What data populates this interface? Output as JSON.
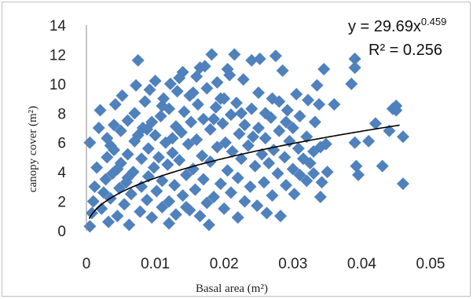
{
  "chart_data": {
    "type": "scatter",
    "title": "",
    "xlabel": "Basal area (m²)",
    "ylabel": "canopy cover (m²)",
    "xlim": [
      0,
      0.05
    ],
    "ylim": [
      0,
      14
    ],
    "x_ticks": [
      "0",
      "0.01",
      "0.02",
      "0.03",
      "0.04",
      "0.05"
    ],
    "y_ticks": [
      "0",
      "2",
      "4",
      "6",
      "8",
      "10",
      "12",
      "14"
    ],
    "grid": false,
    "legend": "none",
    "series": [
      {
        "marker": "diamond",
        "color": "#4f81bd",
        "points": [
          [
            0.0005,
            0.3
          ],
          [
            0.0008,
            1.2
          ],
          [
            0.001,
            2.0
          ],
          [
            0.0012,
            3.0
          ],
          [
            0.0015,
            4.3
          ],
          [
            0.0005,
            6.0
          ],
          [
            0.0018,
            7.0
          ],
          [
            0.002,
            8.2
          ],
          [
            0.0022,
            1.5
          ],
          [
            0.0025,
            2.6
          ],
          [
            0.0028,
            3.5
          ],
          [
            0.003,
            5.0
          ],
          [
            0.003,
            6.3
          ],
          [
            0.0032,
            0.6
          ],
          [
            0.0035,
            2.2
          ],
          [
            0.0038,
            3.9
          ],
          [
            0.004,
            5.5
          ],
          [
            0.004,
            7.2
          ],
          [
            0.0042,
            8.6
          ],
          [
            0.0045,
            1.0
          ],
          [
            0.0048,
            2.9
          ],
          [
            0.005,
            4.6
          ],
          [
            0.005,
            6.8
          ],
          [
            0.0052,
            9.2
          ],
          [
            0.0055,
            1.8
          ],
          [
            0.0058,
            3.3
          ],
          [
            0.006,
            5.2
          ],
          [
            0.006,
            7.5
          ],
          [
            0.0062,
            0.4
          ],
          [
            0.0065,
            2.5
          ],
          [
            0.0068,
            4.0
          ],
          [
            0.007,
            6.1
          ],
          [
            0.007,
            8.0
          ],
          [
            0.0072,
            9.9
          ],
          [
            0.0075,
            11.6
          ],
          [
            0.0078,
            1.3
          ],
          [
            0.008,
            3.0
          ],
          [
            0.008,
            4.9
          ],
          [
            0.0082,
            7.0
          ],
          [
            0.0085,
            8.8
          ],
          [
            0.0088,
            2.1
          ],
          [
            0.009,
            3.7
          ],
          [
            0.009,
            5.6
          ],
          [
            0.0092,
            9.6
          ],
          [
            0.0095,
            0.9
          ],
          [
            0.0098,
            4.3
          ],
          [
            0.01,
            6.5
          ],
          [
            0.01,
            10.2
          ],
          [
            0.0102,
            2.7
          ],
          [
            0.0105,
            5.0
          ],
          [
            0.0108,
            7.8
          ],
          [
            0.011,
            1.6
          ],
          [
            0.011,
            3.4
          ],
          [
            0.0112,
            9.0
          ],
          [
            0.0115,
            6.0
          ],
          [
            0.0118,
            4.5
          ],
          [
            0.012,
            2.0
          ],
          [
            0.012,
            8.3
          ],
          [
            0.0122,
            10.0
          ],
          [
            0.0125,
            5.3
          ],
          [
            0.0128,
            3.1
          ],
          [
            0.013,
            7.1
          ],
          [
            0.013,
            1.1
          ],
          [
            0.0132,
            9.5
          ],
          [
            0.0135,
            4.8
          ],
          [
            0.0138,
            6.7
          ],
          [
            0.014,
            2.4
          ],
          [
            0.014,
            10.8
          ],
          [
            0.0142,
            8.1
          ],
          [
            0.0145,
            3.8
          ],
          [
            0.0148,
            5.9
          ],
          [
            0.015,
            1.4
          ],
          [
            0.015,
            9.2
          ],
          [
            0.0152,
            7.4
          ],
          [
            0.0155,
            4.2
          ],
          [
            0.0158,
            2.8
          ],
          [
            0.016,
            6.2
          ],
          [
            0.016,
            10.5
          ],
          [
            0.0162,
            8.6
          ],
          [
            0.0165,
            1.0
          ],
          [
            0.0168,
            5.1
          ],
          [
            0.017,
            3.5
          ],
          [
            0.017,
            7.6
          ],
          [
            0.0172,
            11.2
          ],
          [
            0.0175,
            9.7
          ],
          [
            0.0178,
            0.4
          ],
          [
            0.018,
            4.7
          ],
          [
            0.018,
            6.9
          ],
          [
            0.0182,
            12.0
          ],
          [
            0.0185,
            2.3
          ],
          [
            0.0188,
            8.4
          ],
          [
            0.019,
            5.7
          ],
          [
            0.019,
            10.1
          ],
          [
            0.0195,
            3.2
          ],
          [
            0.0198,
            7.3
          ],
          [
            0.02,
            1.5
          ],
          [
            0.02,
            9.0
          ],
          [
            0.0202,
            6.0
          ],
          [
            0.0205,
            4.1
          ],
          [
            0.0208,
            10.6
          ],
          [
            0.021,
            2.6
          ],
          [
            0.021,
            7.9
          ],
          [
            0.0212,
            5.4
          ],
          [
            0.0215,
            12.0
          ],
          [
            0.0218,
            8.7
          ],
          [
            0.022,
            3.6
          ],
          [
            0.022,
            0.9
          ],
          [
            0.0222,
            6.6
          ],
          [
            0.0225,
            4.9
          ],
          [
            0.0228,
            10.3
          ],
          [
            0.023,
            2.0
          ],
          [
            0.023,
            7.2
          ],
          [
            0.0235,
            5.8
          ],
          [
            0.0238,
            3.0
          ],
          [
            0.024,
            11.6
          ],
          [
            0.024,
            8.3
          ],
          [
            0.0242,
            6.4
          ],
          [
            0.0245,
            4.4
          ],
          [
            0.0248,
            1.7
          ],
          [
            0.025,
            9.4
          ],
          [
            0.025,
            7.0
          ],
          [
            0.0252,
            11.7
          ],
          [
            0.0255,
            5.2
          ],
          [
            0.0258,
            3.3
          ],
          [
            0.026,
            8.0
          ],
          [
            0.026,
            6.3
          ],
          [
            0.0262,
            1.2
          ],
          [
            0.0265,
            4.6
          ],
          [
            0.0268,
            7.7
          ],
          [
            0.027,
            2.4
          ],
          [
            0.027,
            9.0
          ],
          [
            0.0272,
            5.5
          ],
          [
            0.0275,
            11.9
          ],
          [
            0.0278,
            3.9
          ],
          [
            0.028,
            6.8
          ],
          [
            0.028,
            8.8
          ],
          [
            0.0282,
            1.0
          ],
          [
            0.0285,
            10.9
          ],
          [
            0.0288,
            5.0
          ],
          [
            0.029,
            7.4
          ],
          [
            0.029,
            3.1
          ],
          [
            0.0292,
            8.2
          ],
          [
            0.0295,
            6.1
          ],
          [
            0.03,
            4.2
          ],
          [
            0.03,
            7.0
          ],
          [
            0.0302,
            2.5
          ],
          [
            0.0305,
            9.3
          ],
          [
            0.0308,
            5.6
          ],
          [
            0.031,
            3.8
          ],
          [
            0.031,
            7.8
          ],
          [
            0.0315,
            4.9
          ],
          [
            0.032,
            6.4
          ],
          [
            0.032,
            3.4
          ],
          [
            0.0322,
            8.9
          ],
          [
            0.0325,
            4.6
          ],
          [
            0.033,
            5.4
          ],
          [
            0.033,
            3.9
          ],
          [
            0.0332,
            7.4
          ],
          [
            0.0335,
            9.9
          ],
          [
            0.0338,
            8.6
          ],
          [
            0.034,
            5.7
          ],
          [
            0.034,
            2.3
          ],
          [
            0.0342,
            3.3
          ],
          [
            0.0345,
            11.0
          ],
          [
            0.0348,
            5.9
          ],
          [
            0.035,
            4.0
          ],
          [
            0.036,
            8.6
          ],
          [
            0.0385,
            10.0
          ],
          [
            0.039,
            11.7
          ],
          [
            0.039,
            11.1
          ],
          [
            0.039,
            6.0
          ],
          [
            0.0392,
            4.4
          ],
          [
            0.0395,
            3.8
          ],
          [
            0.041,
            6.1
          ],
          [
            0.042,
            7.3
          ],
          [
            0.043,
            4.4
          ],
          [
            0.044,
            6.8
          ],
          [
            0.0445,
            8.3
          ],
          [
            0.045,
            8.5
          ],
          [
            0.045,
            8.2
          ],
          [
            0.046,
            6.4
          ],
          [
            0.046,
            3.2
          ],
          [
            0.012,
            0.5
          ],
          [
            0.0145,
            1.6
          ],
          [
            0.0175,
            1.9
          ],
          [
            0.006,
            3.6
          ],
          [
            0.0045,
            4.2
          ],
          [
            0.0035,
            5.8
          ],
          [
            0.0088,
            6.9
          ],
          [
            0.011,
            8.5
          ],
          [
            0.0205,
            11.0
          ],
          [
            0.0195,
            9.0
          ],
          [
            0.0225,
            8.0
          ],
          [
            0.0155,
            9.4
          ],
          [
            0.0165,
            11.1
          ],
          [
            0.0135,
            10.4
          ],
          [
            0.0095,
            7.4
          ],
          [
            0.0075,
            6.5
          ],
          [
            0.0125,
            6.3
          ],
          [
            0.0185,
            7.6
          ]
        ]
      }
    ],
    "trendline": {
      "type": "power",
      "a": 29.69,
      "b": 0.459,
      "color": "#000000"
    },
    "annotations": {
      "equation": "y = 29.69x",
      "equation_exponent": "0.459",
      "r2_label": "R² = 0.256"
    }
  }
}
